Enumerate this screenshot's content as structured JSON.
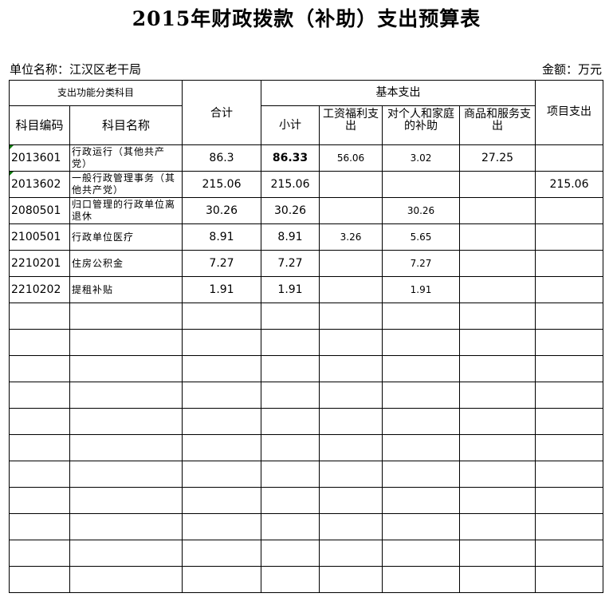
{
  "title": "2015年财政拨款（补助）支出预算表",
  "unit_label": "单位名称：江汉区老干局",
  "amount_label": "金额：万元",
  "headers": {
    "func": "支出功能分类科目",
    "total": "合计",
    "basic": "基本支出",
    "project": "项目支出",
    "code": "科目编码",
    "name": "科目名称",
    "subtotal": "小计",
    "wage": "工资福利支出",
    "personal": "对个人和家庭的补助",
    "goods": "商品和服务支出"
  },
  "rows": [
    {
      "code": "2013601",
      "name": "行政运行（其他共产党）",
      "total": "86.3",
      "subtotal": "86.33",
      "wage": "56.06",
      "personal": "3.02",
      "goods": "27.25",
      "project": ""
    },
    {
      "code": "2013602",
      "name": "一般行政管理事务（其他共产党）",
      "total": "215.06",
      "subtotal": "215.06",
      "wage": "",
      "personal": "",
      "goods": "",
      "project": "215.06"
    },
    {
      "code": "2080501",
      "name": "归口管理的行政单位离退休",
      "total": "30.26",
      "subtotal": "30.26",
      "wage": "",
      "personal": "30.26",
      "goods": "",
      "project": ""
    },
    {
      "code": "2100501",
      "name": "行政单位医疗",
      "total": "8.91",
      "subtotal": "8.91",
      "wage": "3.26",
      "personal": "5.65",
      "goods": "",
      "project": ""
    },
    {
      "code": "2210201",
      "name": "住房公积金",
      "total": "7.27",
      "subtotal": "7.27",
      "wage": "",
      "personal": "7.27",
      "goods": "",
      "project": ""
    },
    {
      "code": "2210202",
      "name": "提租补贴",
      "total": "1.91",
      "subtotal": "1.91",
      "wage": "",
      "personal": "1.91",
      "goods": "",
      "project": ""
    }
  ]
}
